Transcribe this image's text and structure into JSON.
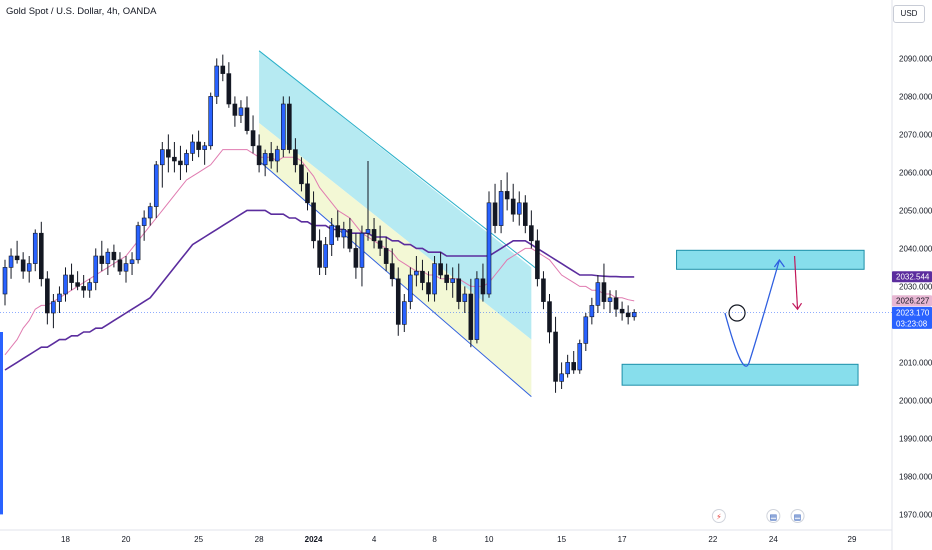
{
  "header": {
    "title": "Gold Spot / U.S. Dollar, 4h, OANDA",
    "currency": "USD"
  },
  "colors": {
    "up": "#131722",
    "down": "#131722",
    "sma_fast": "#e07bb0",
    "sma_slow": "#5b2d9e",
    "zone_fill": "#5fd3e6",
    "zone_stroke": "#1c8fa8",
    "channel_line": "#2f5fe0",
    "channel_upper_fill": "#a9e6f0",
    "channel_lower_fill": "#f2f7d0",
    "projection": "#2f5fe0",
    "arrow_down": "#c2185b",
    "left_stripe": "#2962ff"
  },
  "chart_data": {
    "type": "candlestick",
    "title": "Gold Spot / U.S. Dollar, 4h, OANDA",
    "ylim": [
      1968,
      2098
    ],
    "y_ticks": [
      "2090.000",
      "2080.000",
      "2070.000",
      "2060.000",
      "2050.000",
      "2040.000",
      "2030.000",
      "2020.000",
      "2010.000",
      "2000.000",
      "1990.000",
      "1980.000",
      "1970.000"
    ],
    "y_tick_values": [
      2090,
      2080,
      2070,
      2060,
      2050,
      2040,
      2030,
      2020,
      2010,
      2000,
      1990,
      1980,
      1970
    ],
    "x_ticks": [
      "18",
      "20",
      "25",
      "28",
      "2024",
      "4",
      "8",
      "10",
      "15",
      "17",
      "22",
      "24",
      "29"
    ],
    "x_tick_bar_index": [
      10,
      20,
      32,
      42,
      51,
      61,
      71,
      80,
      92,
      102,
      117,
      127,
      140
    ],
    "price_labels": [
      {
        "label": "sma-slow-price",
        "value": "2032.544",
        "price": 2032.544,
        "bg": "#5b2d9e",
        "fg": "#ffffff"
      },
      {
        "label": "sma-fast-price",
        "value": "2026.227",
        "price": 2026.227,
        "bg": "#e7b7d3",
        "fg": "#131722"
      },
      {
        "label": "last-price",
        "value": "2023.170",
        "price": 2023.17,
        "bg": "#2962ff",
        "fg": "#ffffff",
        "countdown": "03:23:08"
      }
    ],
    "last_price": 2023.17,
    "series": [
      {
        "type": "ohlc",
        "bars": [
          [
            2028,
            2037,
            2025,
            2035
          ],
          [
            2035,
            2040,
            2032,
            2038
          ],
          [
            2038,
            2042,
            2036,
            2037
          ],
          [
            2037,
            2039,
            2032,
            2034
          ],
          [
            2034,
            2038,
            2031,
            2036
          ],
          [
            2036,
            2045,
            2034,
            2044
          ],
          [
            2044,
            2047,
            2030,
            2032
          ],
          [
            2032,
            2034,
            2020,
            2023
          ],
          [
            2023,
            2028,
            2019,
            2026
          ],
          [
            2026,
            2030,
            2023,
            2028
          ],
          [
            2028,
            2035,
            2026,
            2033
          ],
          [
            2033,
            2036,
            2029,
            2031
          ],
          [
            2031,
            2034,
            2029,
            2030
          ],
          [
            2030,
            2033,
            2027,
            2029
          ],
          [
            2029,
            2032,
            2027,
            2031
          ],
          [
            2031,
            2040,
            2029,
            2038
          ],
          [
            2038,
            2042,
            2034,
            2036
          ],
          [
            2036,
            2040,
            2033,
            2039
          ],
          [
            2039,
            2041,
            2035,
            2037
          ],
          [
            2037,
            2039,
            2033,
            2034
          ],
          [
            2034,
            2038,
            2031,
            2036
          ],
          [
            2036,
            2039,
            2033,
            2037
          ],
          [
            2037,
            2047,
            2036,
            2046
          ],
          [
            2046,
            2050,
            2042,
            2048
          ],
          [
            2048,
            2052,
            2046,
            2051
          ],
          [
            2051,
            2063,
            2048,
            2062
          ],
          [
            2062,
            2068,
            2056,
            2066
          ],
          [
            2066,
            2070,
            2060,
            2064
          ],
          [
            2064,
            2068,
            2060,
            2063
          ],
          [
            2063,
            2067,
            2058,
            2062
          ],
          [
            2062,
            2066,
            2060,
            2065
          ],
          [
            2065,
            2070,
            2063,
            2068
          ],
          [
            2068,
            2071,
            2064,
            2066
          ],
          [
            2066,
            2068,
            2062,
            2067
          ],
          [
            2067,
            2081,
            2066,
            2080
          ],
          [
            2080,
            2090,
            2078,
            2088
          ],
          [
            2088,
            2091,
            2084,
            2086
          ],
          [
            2086,
            2089,
            2077,
            2078
          ],
          [
            2078,
            2080,
            2072,
            2075
          ],
          [
            2075,
            2079,
            2073,
            2077
          ],
          [
            2077,
            2080,
            2070,
            2071
          ],
          [
            2071,
            2075,
            2065,
            2067
          ],
          [
            2067,
            2070,
            2060,
            2062
          ],
          [
            2062,
            2066,
            2059,
            2065
          ],
          [
            2065,
            2068,
            2061,
            2063
          ],
          [
            2063,
            2067,
            2060,
            2066
          ],
          [
            2066,
            2080,
            2064,
            2078
          ],
          [
            2078,
            2080,
            2065,
            2066
          ],
          [
            2066,
            2069,
            2060,
            2062
          ],
          [
            2062,
            2064,
            2055,
            2057
          ],
          [
            2057,
            2060,
            2050,
            2052
          ],
          [
            2052,
            2055,
            2040,
            2042
          ],
          [
            2042,
            2045,
            2033,
            2035
          ],
          [
            2035,
            2043,
            2033,
            2041
          ],
          [
            2041,
            2048,
            2038,
            2046
          ],
          [
            2046,
            2050,
            2042,
            2043
          ],
          [
            2043,
            2047,
            2040,
            2045
          ],
          [
            2045,
            2048,
            2039,
            2040
          ],
          [
            2040,
            2044,
            2032,
            2035
          ],
          [
            2035,
            2046,
            2030,
            2044
          ],
          [
            2044,
            2063,
            2042,
            2045
          ],
          [
            2045,
            2048,
            2040,
            2042
          ],
          [
            2042,
            2046,
            2038,
            2040
          ],
          [
            2040,
            2043,
            2034,
            2036
          ],
          [
            2036,
            2040,
            2030,
            2032
          ],
          [
            2032,
            2035,
            2017,
            2020
          ],
          [
            2020,
            2028,
            2018,
            2026
          ],
          [
            2026,
            2035,
            2024,
            2033
          ],
          [
            2033,
            2038,
            2030,
            2034
          ],
          [
            2034,
            2037,
            2029,
            2031
          ],
          [
            2031,
            2034,
            2026,
            2028
          ],
          [
            2028,
            2038,
            2026,
            2036
          ],
          [
            2036,
            2039,
            2032,
            2033
          ],
          [
            2033,
            2036,
            2029,
            2031
          ],
          [
            2031,
            2035,
            2027,
            2032
          ],
          [
            2032,
            2036,
            2024,
            2026
          ],
          [
            2026,
            2030,
            2023,
            2028
          ],
          [
            2028,
            2032,
            2014,
            2016
          ],
          [
            2016,
            2034,
            2015,
            2032
          ],
          [
            2032,
            2036,
            2026,
            2028
          ],
          [
            2028,
            2055,
            2027,
            2052
          ],
          [
            2052,
            2057,
            2044,
            2046
          ],
          [
            2046,
            2058,
            2044,
            2055
          ],
          [
            2055,
            2060,
            2050,
            2053
          ],
          [
            2053,
            2057,
            2047,
            2049
          ],
          [
            2049,
            2055,
            2046,
            2052
          ],
          [
            2052,
            2054,
            2044,
            2046
          ],
          [
            2046,
            2050,
            2040,
            2042
          ],
          [
            2042,
            2045,
            2030,
            2032
          ],
          [
            2032,
            2034,
            2024,
            2026
          ],
          [
            2026,
            2028,
            2015,
            2018
          ],
          [
            2018,
            2022,
            2002,
            2005
          ],
          [
            2005,
            2010,
            2003,
            2007
          ],
          [
            2007,
            2012,
            2006,
            2010
          ],
          [
            2010,
            2013,
            2007,
            2008
          ],
          [
            2008,
            2016,
            2007,
            2015
          ],
          [
            2015,
            2023,
            2013,
            2022
          ],
          [
            2022,
            2027,
            2020,
            2025
          ],
          [
            2025,
            2033,
            2023,
            2031
          ],
          [
            2031,
            2036,
            2024,
            2026
          ],
          [
            2026,
            2029,
            2023,
            2027
          ],
          [
            2027,
            2029,
            2022,
            2024
          ],
          [
            2024,
            2026,
            2021,
            2023
          ],
          [
            2023,
            2025,
            2020,
            2022
          ],
          [
            2022,
            2024,
            2021,
            2023.17
          ]
        ]
      },
      {
        "name": "",
        "type": "line",
        "color": "#e07bb0",
        "values": [
          2012,
          2014,
          2016,
          2019,
          2021,
          2024,
          2025,
          2025,
          2026,
          2027,
          2028,
          2029,
          2030,
          2031,
          2032,
          2033,
          2034,
          2035,
          2036,
          2037,
          2038,
          2040,
          2042,
          2044,
          2046,
          2048,
          2050,
          2052,
          2054,
          2056,
          2058,
          2059,
          2060,
          2061,
          2062,
          2064,
          2066,
          2066,
          2066,
          2066,
          2066,
          2065,
          2064,
          2064,
          2064,
          2063,
          2064,
          2064,
          2064,
          2063,
          2061,
          2059,
          2056,
          2054,
          2052,
          2050,
          2049,
          2048,
          2046,
          2044,
          2043,
          2042,
          2041,
          2040,
          2039,
          2037,
          2036,
          2035,
          2034,
          2034,
          2033,
          2033,
          2032,
          2032,
          2032,
          2032,
          2031,
          2030,
          2030,
          2030,
          2031,
          2033,
          2035,
          2037,
          2038,
          2039,
          2040,
          2040,
          2039,
          2038,
          2037,
          2035,
          2033,
          2032,
          2031,
          2030,
          2030,
          2029,
          2029,
          2028,
          2028,
          2027,
          2027,
          2026.5,
          2026.2
        ]
      },
      {
        "name": "",
        "type": "line",
        "color": "#5b2d9e",
        "values": [
          2008,
          2009,
          2010,
          2011,
          2012,
          2013,
          2014,
          2014,
          2015,
          2016,
          2016,
          2017,
          2017,
          2018,
          2018,
          2019,
          2019,
          2020,
          2021,
          2022,
          2023,
          2024,
          2025,
          2026,
          2027,
          2029,
          2031,
          2033,
          2035,
          2037,
          2039,
          2041,
          2042,
          2043,
          2044,
          2045,
          2046,
          2047,
          2048,
          2049,
          2050,
          2050,
          2050,
          2050,
          2049,
          2049,
          2049,
          2048,
          2048,
          2047,
          2047,
          2046,
          2046,
          2046,
          2045,
          2045,
          2045,
          2044,
          2044,
          2044,
          2044,
          2043,
          2043,
          2043,
          2042,
          2042,
          2041,
          2041,
          2040,
          2040,
          2039,
          2039,
          2039,
          2038,
          2038,
          2038,
          2038,
          2038,
          2038,
          2038,
          2038,
          2039,
          2040,
          2041,
          2042,
          2042,
          2042,
          2041,
          2040,
          2039,
          2038,
          2037,
          2036,
          2035,
          2034,
          2033,
          2033,
          2033,
          2032.8,
          2032.7,
          2032.6,
          2032.6,
          2032.5,
          2032.5,
          2032.5
        ]
      }
    ],
    "annotations": {
      "channel": {
        "start_bar": 42,
        "end_bar": 87,
        "upper_start_price": 2092,
        "upper_end_price": 2035,
        "lower_start_price": 2063,
        "lower_end_price": 2001
      },
      "resistance_zone": {
        "start_bar": 111,
        "end_bar": 142,
        "top_price": 2039.5,
        "bottom_price": 2034.5
      },
      "support_zone": {
        "start_bar": 102,
        "end_bar": 141,
        "top_price": 2009.5,
        "bottom_price": 2004
      },
      "projection_path": {
        "points": [
          [
            119,
            2023
          ],
          [
            123,
            2010
          ],
          [
            128,
            2038
          ]
        ]
      },
      "down_arrow": {
        "bar": 131,
        "from_price": 2038,
        "to_price": 2024
      },
      "circle_marker": {
        "bar": 121,
        "price": 2023
      }
    }
  }
}
